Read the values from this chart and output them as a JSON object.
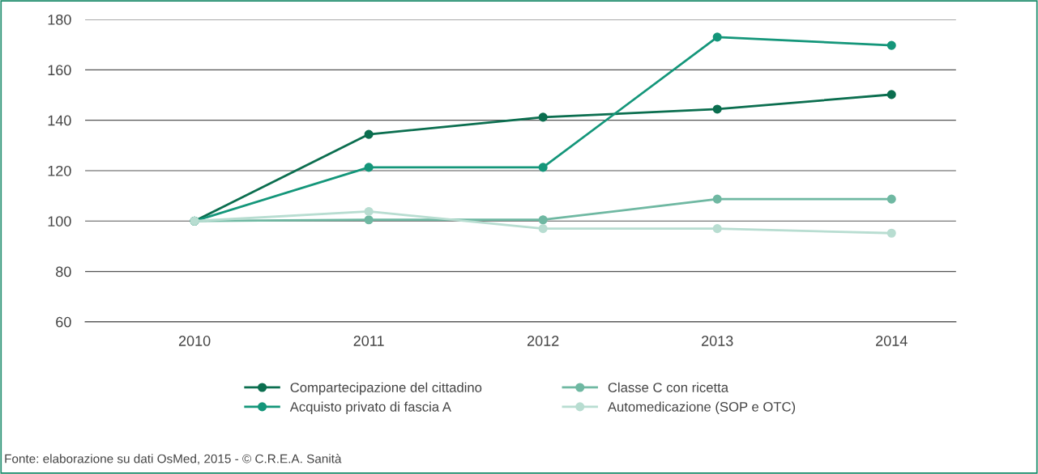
{
  "chart_data": {
    "type": "line",
    "categories": [
      "2010",
      "2011",
      "2012",
      "2013",
      "2014"
    ],
    "series": [
      {
        "name": "Compartecipazione del cittadino",
        "color": "#0b6e4f",
        "values": [
          100,
          134.4,
          141.2,
          144.4,
          150.2
        ]
      },
      {
        "name": "Acquisto privato di fascia A",
        "color": "#14967a",
        "values": [
          100,
          121.3,
          121.3,
          173,
          169.7
        ]
      },
      {
        "name": "Classe C con ricetta",
        "color": "#6fb8a2",
        "values": [
          100,
          100.5,
          100.5,
          108.7,
          108.7
        ]
      },
      {
        "name": "Automedicazione (SOP e OTC)",
        "color": "#b8ddd1",
        "values": [
          100,
          103.8,
          97,
          97,
          95.2
        ]
      }
    ],
    "ylim": [
      60,
      180
    ],
    "yticks": [
      60,
      80,
      100,
      120,
      140,
      160,
      180
    ],
    "grid": "y",
    "legend": "bottom",
    "marker": "circle",
    "line_style": "solid",
    "annotations": [
      "Fonte: elaborazione su dati OsMed, 2015 - © C.R.E.A. Sanità"
    ]
  }
}
